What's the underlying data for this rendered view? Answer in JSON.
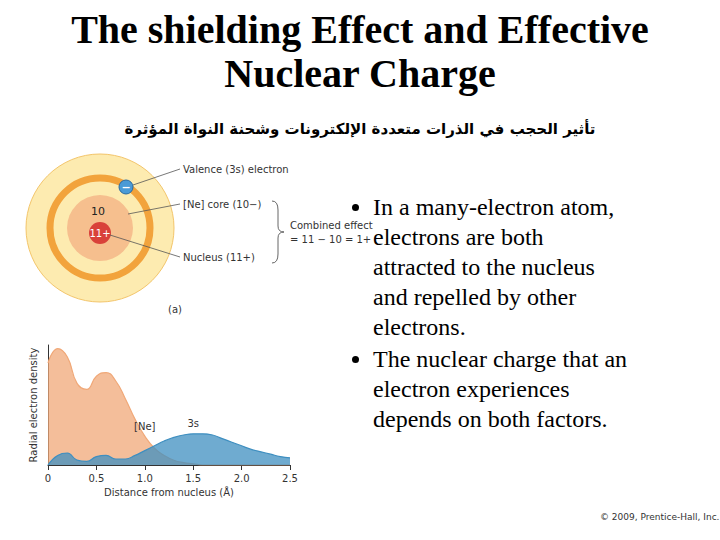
{
  "slide": {
    "title": [
      "The shielding Effect and Effective",
      "Nuclear Charge"
    ],
    "subtitle": "تأثير الحجب في الذرات متعددة الإلكترونات وشحنة النواة المؤثرة",
    "bullets": [
      [
        "In a many-electron atom,",
        "electrons are both",
        "attracted to the nucleus",
        "and repelled by other",
        "electrons."
      ],
      [
        "The nuclear charge that an",
        "electron experiences",
        "depends on both factors."
      ]
    ],
    "copyright": "© 2009, Prentice-Hall, Inc."
  },
  "diagram": {
    "electron": "−",
    "core": "10",
    "nucleus": "11+",
    "valence_label": "Valence (3s) electron",
    "core_label": "[Ne] core (10−)",
    "nucleus_label": "Nucleus (11+)",
    "combined_label": [
      "Combined effect",
      "= 11 − 10 = 1+"
    ],
    "panel": "(a)"
  },
  "chart_data": {
    "type": "area",
    "x_label": "Distance from nucleus (Å)",
    "y_label": "Radial electron density",
    "x": [
      0,
      0.1,
      0.2,
      0.3,
      0.4,
      0.5,
      0.6,
      0.7,
      0.8,
      0.9,
      1.0,
      1.1,
      1.2,
      1.3,
      1.4,
      1.5,
      1.6,
      1.7,
      1.8,
      1.9,
      2.0,
      2.1,
      2.2,
      2.3,
      2.4,
      2.5
    ],
    "series": [
      {
        "name": "[Ne]",
        "color": "#f0a878",
        "values": [
          0.85,
          0.97,
          0.9,
          0.68,
          0.63,
          0.74,
          0.77,
          0.7,
          0.55,
          0.38,
          0.24,
          0.14,
          0.08,
          0.04,
          0.02,
          0.01,
          0,
          0,
          0,
          0,
          0,
          0,
          0,
          0,
          0,
          0
        ]
      },
      {
        "name": "3s",
        "color": "#3f8fc0",
        "values": [
          0,
          0.08,
          0.1,
          0.04,
          0.03,
          0.07,
          0.08,
          0.05,
          0.05,
          0.08,
          0.12,
          0.16,
          0.2,
          0.23,
          0.25,
          0.26,
          0.26,
          0.25,
          0.22,
          0.19,
          0.16,
          0.13,
          0.11,
          0.09,
          0.07,
          0.06
        ]
      }
    ],
    "xlim": [
      0,
      2.5
    ],
    "xticks": [
      0,
      0.5,
      {
        "value": 1,
        "label": "1.0"
      },
      1.5,
      {
        "value": 2,
        "label": "2.0"
      },
      2.5
    ],
    "ylim": [
      0,
      1
    ],
    "tick_labels": "x",
    "grid": false
  }
}
